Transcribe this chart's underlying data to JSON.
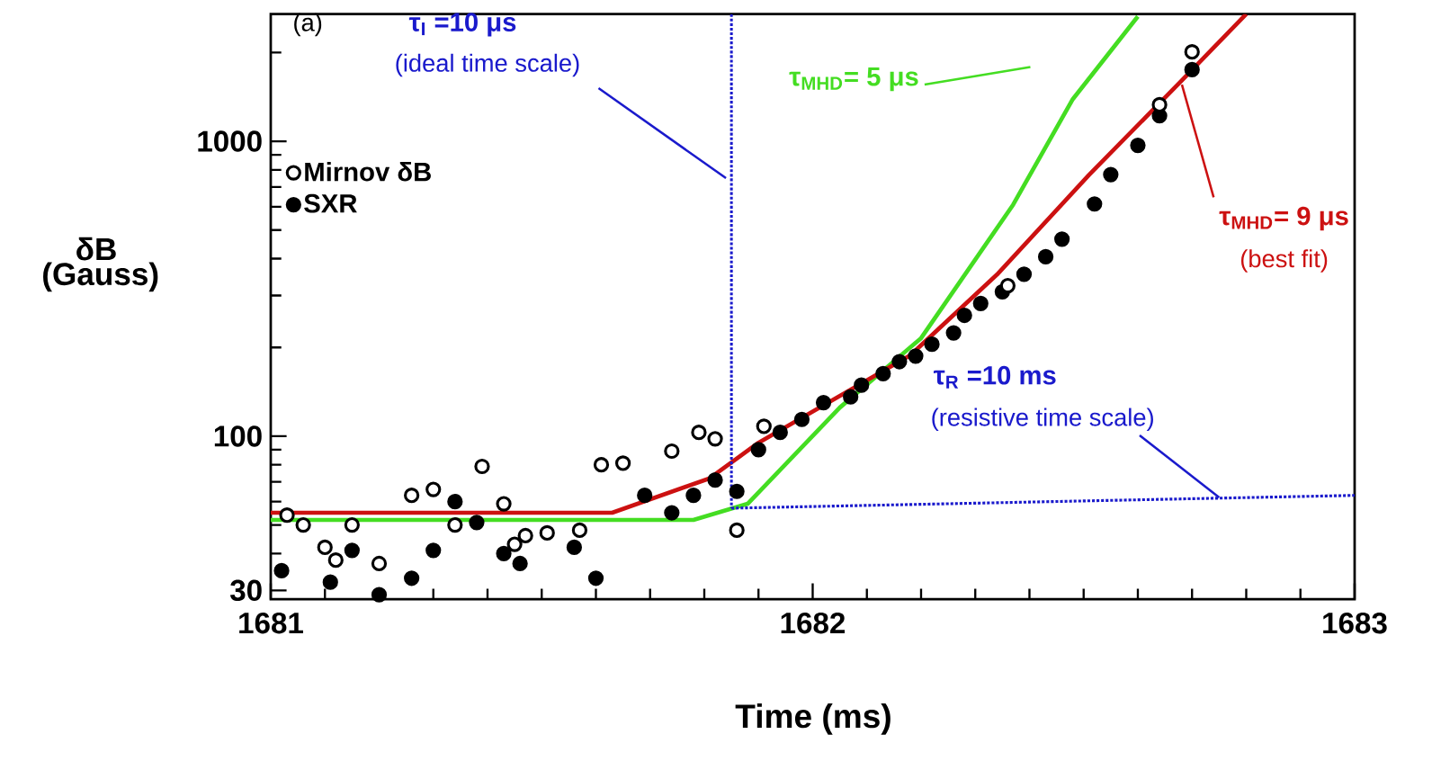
{
  "chart_data": {
    "type": "scatter",
    "xlabel": "Time (ms)",
    "ylabel": "δB (Gauss)",
    "xlim": [
      1681,
      1683
    ],
    "ylim": [
      28,
      2700
    ],
    "log": "y",
    "xticks": [
      1681,
      {
        "value": 1681.1,
        "label": null
      },
      {
        "value": 1681.2,
        "label": null
      },
      {
        "value": 1681.3,
        "label": null
      },
      {
        "value": 1681.4,
        "label": null
      },
      {
        "value": 1681.5,
        "label": null
      },
      {
        "value": 1681.6,
        "label": null
      },
      {
        "value": 1681.7,
        "label": null
      },
      {
        "value": 1681.8,
        "label": null
      },
      {
        "value": 1681.9,
        "label": null
      },
      1682,
      {
        "value": 1682.1,
        "label": null
      },
      {
        "value": 1682.2,
        "label": null
      },
      {
        "value": 1682.3,
        "label": null
      },
      {
        "value": 1682.4,
        "label": null
      },
      {
        "value": 1682.5,
        "label": null
      },
      {
        "value": 1682.6,
        "label": null
      },
      {
        "value": 1682.7,
        "label": null
      },
      {
        "value": 1682.8,
        "label": null
      },
      {
        "value": 1682.9,
        "label": null
      },
      1683
    ],
    "yticks": [
      30,
      {
        "value": 40,
        "label": null
      },
      {
        "value": 50,
        "label": null
      },
      {
        "value": 60,
        "label": null
      },
      {
        "value": 70,
        "label": null
      },
      {
        "value": 80,
        "label": null
      },
      {
        "value": 90,
        "label": null
      },
      100,
      {
        "value": 200,
        "label": null
      },
      {
        "value": 300,
        "label": null
      },
      {
        "value": 400,
        "label": null
      },
      {
        "value": 500,
        "label": null
      },
      {
        "value": 600,
        "label": null
      },
      {
        "value": 700,
        "label": null
      },
      {
        "value": 800,
        "label": null
      },
      {
        "value": 900,
        "label": null
      },
      1000,
      {
        "value": 2000,
        "label": null
      }
    ],
    "grid": false,
    "legend": "top left",
    "series": [
      {
        "name": "Mirnov δB",
        "marker": "circle",
        "color": "#000000",
        "x": [
          1681.03,
          1681.06,
          1681.1,
          1681.12,
          1681.15,
          1681.2,
          1681.26,
          1681.3,
          1681.34,
          1681.39,
          1681.43,
          1681.45,
          1681.47,
          1681.51,
          1681.57,
          1681.61,
          1681.65,
          1681.74,
          1681.79,
          1681.82,
          1681.86,
          1681.91,
          1682.36,
          1682.64,
          1682.7
        ],
        "values": [
          54,
          50,
          42,
          38,
          50,
          37,
          63,
          66,
          50,
          79,
          59,
          43,
          46,
          47,
          48,
          80,
          81,
          89,
          103,
          98,
          48,
          108,
          324,
          1330,
          2010
        ]
      },
      {
        "name": "SXR",
        "marker": "circle",
        "color": "#000000",
        "x": [
          1681.02,
          1681.11,
          1681.15,
          1681.2,
          1681.26,
          1681.3,
          1681.34,
          1681.38,
          1681.43,
          1681.46,
          1681.56,
          1681.6,
          1681.69,
          1681.74,
          1681.78,
          1681.82,
          1681.86,
          1681.9,
          1681.94,
          1681.98,
          1682.02,
          1682.07,
          1682.09,
          1682.13,
          1682.16,
          1682.19,
          1682.22,
          1682.26,
          1682.28,
          1682.31,
          1682.35,
          1682.39,
          1682.43,
          1682.46,
          1682.52,
          1682.55,
          1682.6,
          1682.64,
          1682.7
        ],
        "values": [
          35,
          32,
          41,
          29,
          33,
          41,
          60,
          51,
          40,
          37,
          42,
          33,
          63,
          55,
          63,
          71,
          65,
          90,
          103,
          114,
          130,
          136,
          149,
          163,
          179,
          187,
          205,
          224,
          257,
          282,
          309,
          354,
          406,
          466,
          613,
          771,
          969,
          1220,
          1750
        ]
      },
      {
        "name": "τ$_{MHD}$= 5 μs",
        "type": "line",
        "marker": "none",
        "color": "#44dd22",
        "line_style": "solid",
        "x": [
          1681,
          1681.78,
          1681.88,
          1682.05,
          1682.2,
          1682.37,
          1682.48,
          1682.6
        ],
        "values": [
          52,
          52,
          59,
          125,
          215,
          610,
          1390,
          2650
        ]
      },
      {
        "name": "τ$_{MHD}$= 9 μs",
        "type": "line",
        "marker": "none",
        "color": "#cc1111",
        "line_style": "solid",
        "x": [
          1681,
          1681.63,
          1681.81,
          1681.9,
          1682.18,
          1682.34,
          1682.51,
          1682.68,
          1682.8
        ],
        "values": [
          55,
          55,
          72,
          95,
          188,
          353,
          770,
          1600,
          2700
        ]
      },
      {
        "name": "τ$_{I}$ =10 μs",
        "type": "line",
        "marker": "none",
        "color": "#1a1acc",
        "line_style": "dotted",
        "x": [
          1681.85,
          1681.85
        ],
        "values": [
          2700,
          57
        ]
      },
      {
        "name": "τ$_{R}$ =10 ms",
        "type": "line",
        "marker": "none",
        "color": "#1a1acc",
        "line_style": "dotted",
        "x": [
          1681.85,
          1683
        ],
        "values": [
          57,
          63
        ]
      }
    ],
    "annotations": [
      "(a)",
      {
        "text": "(ideal time scale)",
        "x": 1681.84,
        "y": 750
      },
      "(best fit)",
      {
        "text": "(resistive time scale)",
        "x": 1682.75,
        "y": 62
      }
    ]
  }
}
